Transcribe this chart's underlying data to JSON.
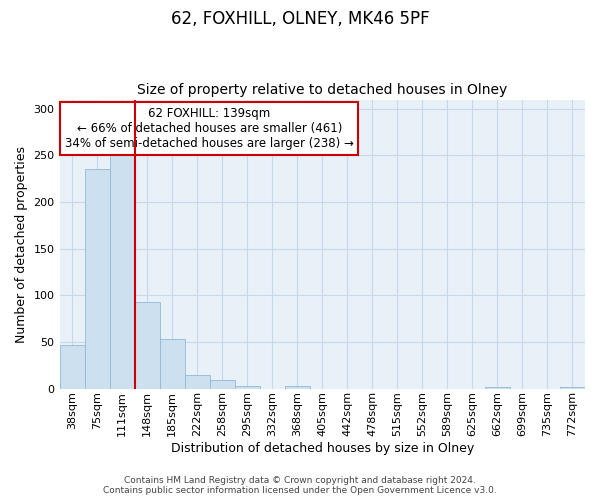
{
  "title": "62, FOXHILL, OLNEY, MK46 5PF",
  "subtitle": "Size of property relative to detached houses in Olney",
  "xlabel": "Distribution of detached houses by size in Olney",
  "ylabel": "Number of detached properties",
  "footnote": "Contains HM Land Registry data © Crown copyright and database right 2024.\nContains public sector information licensed under the Open Government Licence v3.0.",
  "bin_labels": [
    "38sqm",
    "75sqm",
    "111sqm",
    "148sqm",
    "185sqm",
    "222sqm",
    "258sqm",
    "295sqm",
    "332sqm",
    "368sqm",
    "405sqm",
    "442sqm",
    "478sqm",
    "515sqm",
    "552sqm",
    "589sqm",
    "625sqm",
    "662sqm",
    "699sqm",
    "735sqm",
    "772sqm"
  ],
  "bar_values": [
    47,
    236,
    252,
    93,
    53,
    14,
    9,
    3,
    0,
    3,
    0,
    0,
    0,
    0,
    0,
    0,
    0,
    0,
    2,
    0,
    0,
    2
  ],
  "bar_color": "#cce0f0",
  "bar_edge_color": "#93b8d4",
  "vline_color": "#cc0000",
  "annotation_text": "62 FOXHILL: 139sqm\n← 66% of detached houses are smaller (461)\n34% of semi-detached houses are larger (238) →",
  "annotation_box_color": "white",
  "annotation_box_edge": "#cc0000",
  "ylim": [
    0,
    310
  ],
  "yticks": [
    0,
    50,
    100,
    150,
    200,
    250,
    300
  ],
  "grid_color": "#c8d8ec",
  "background_color": "#e8f0f8",
  "title_fontsize": 12,
  "subtitle_fontsize": 10,
  "xlabel_fontsize": 9,
  "ylabel_fontsize": 9,
  "footnote_fontsize": 6.5,
  "tick_fontsize": 8,
  "annotation_fontsize": 8.5
}
